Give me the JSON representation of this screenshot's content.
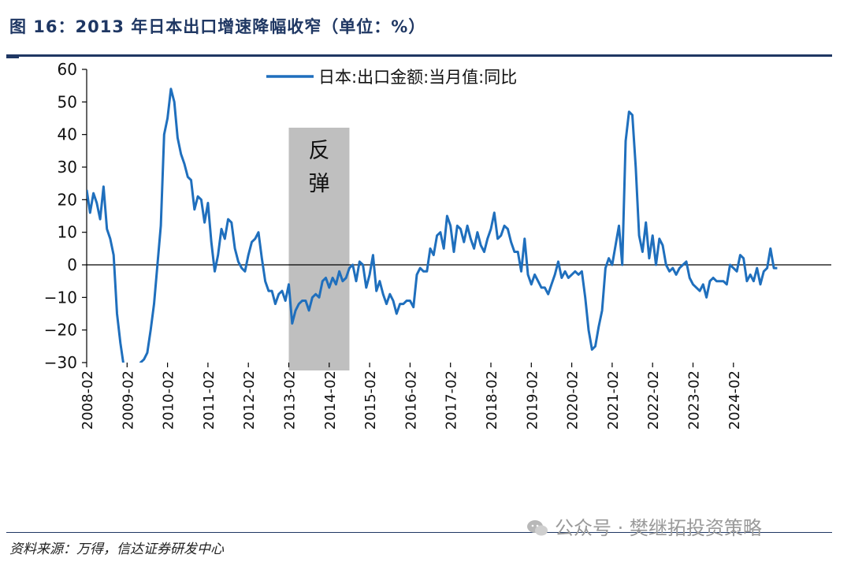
{
  "figure": {
    "title": "图 16：2013 年日本出口增速降幅收窄（单位：%）",
    "source": "资料来源：万得，信达证券研发中心",
    "watermark": "公众号 · 樊继拓投资策略",
    "watermark_icon": "wechat-icon"
  },
  "chart_data": {
    "type": "line",
    "title": "",
    "xlabel": "",
    "ylabel": "",
    "ylim": [
      -30,
      60
    ],
    "yticks": [
      60,
      50,
      40,
      30,
      20,
      10,
      0,
      -10,
      -20,
      -30
    ],
    "xticks": [
      "2008-02",
      "2009-02",
      "2010-02",
      "2011-02",
      "2012-02",
      "2013-02",
      "2014-02",
      "2015-02",
      "2016-02",
      "2017-02",
      "2018-02",
      "2019-02",
      "2020-02",
      "2021-02",
      "2022-02",
      "2023-02",
      "2024-02"
    ],
    "legend": "top-center",
    "grid": false,
    "line_color": "#1f6fbd",
    "annotation": {
      "label": "反弹",
      "x_start": "2013-02",
      "x_end": "2014-08",
      "color": "#bfbfbf"
    },
    "series": [
      {
        "name": "日本:出口金额:当月值:同比",
        "values": [
          [
            "2008-02",
            23
          ],
          [
            "2008-03",
            16
          ],
          [
            "2008-04",
            22
          ],
          [
            "2008-05",
            19
          ],
          [
            "2008-06",
            14
          ],
          [
            "2008-07",
            24
          ],
          [
            "2008-08",
            11
          ],
          [
            "2008-09",
            8
          ],
          [
            "2008-10",
            3
          ],
          [
            "2008-11",
            -15
          ],
          [
            "2008-12",
            -24
          ],
          [
            "2009-01",
            -31
          ],
          [
            "2009-02",
            -32
          ],
          [
            "2009-03",
            -33
          ],
          [
            "2009-04",
            -34
          ],
          [
            "2009-05",
            -33
          ],
          [
            "2009-06",
            -30
          ],
          [
            "2009-07",
            -29
          ],
          [
            "2009-08",
            -27
          ],
          [
            "2009-09",
            -20
          ],
          [
            "2009-10",
            -12
          ],
          [
            "2009-11",
            0
          ],
          [
            "2009-12",
            12
          ],
          [
            "2010-01",
            40
          ],
          [
            "2010-02",
            45
          ],
          [
            "2010-03",
            54
          ],
          [
            "2010-04",
            50
          ],
          [
            "2010-05",
            39
          ],
          [
            "2010-06",
            34
          ],
          [
            "2010-07",
            31
          ],
          [
            "2010-08",
            27
          ],
          [
            "2010-09",
            26
          ],
          [
            "2010-10",
            17
          ],
          [
            "2010-11",
            21
          ],
          [
            "2010-12",
            20
          ],
          [
            "2011-01",
            13
          ],
          [
            "2011-02",
            19
          ],
          [
            "2011-03",
            7
          ],
          [
            "2011-04",
            -2
          ],
          [
            "2011-05",
            3
          ],
          [
            "2011-06",
            11
          ],
          [
            "2011-07",
            8
          ],
          [
            "2011-08",
            14
          ],
          [
            "2011-09",
            13
          ],
          [
            "2011-10",
            5
          ],
          [
            "2011-11",
            1
          ],
          [
            "2011-12",
            -1
          ],
          [
            "2012-01",
            -2
          ],
          [
            "2012-02",
            3
          ],
          [
            "2012-03",
            7
          ],
          [
            "2012-04",
            8
          ],
          [
            "2012-05",
            10
          ],
          [
            "2012-06",
            2
          ],
          [
            "2012-07",
            -5
          ],
          [
            "2012-08",
            -8
          ],
          [
            "2012-09",
            -8
          ],
          [
            "2012-10",
            -12
          ],
          [
            "2012-11",
            -9
          ],
          [
            "2012-12",
            -8
          ],
          [
            "2013-01",
            -11
          ],
          [
            "2013-02",
            -6
          ],
          [
            "2013-03",
            -18
          ],
          [
            "2013-04",
            -14
          ],
          [
            "2013-05",
            -12
          ],
          [
            "2013-06",
            -11
          ],
          [
            "2013-07",
            -11
          ],
          [
            "2013-08",
            -14
          ],
          [
            "2013-09",
            -10
          ],
          [
            "2013-10",
            -9
          ],
          [
            "2013-11",
            -10
          ],
          [
            "2013-12",
            -5
          ],
          [
            "2014-01",
            -4
          ],
          [
            "2014-02",
            -7
          ],
          [
            "2014-03",
            -4
          ],
          [
            "2014-04",
            -6
          ],
          [
            "2014-05",
            -2
          ],
          [
            "2014-06",
            -5
          ],
          [
            "2014-07",
            -4
          ],
          [
            "2014-08",
            -1
          ],
          [
            "2014-09",
            0
          ],
          [
            "2014-10",
            -5
          ],
          [
            "2014-11",
            1
          ],
          [
            "2014-12",
            0
          ],
          [
            "2015-01",
            -7
          ],
          [
            "2015-02",
            -3
          ],
          [
            "2015-03",
            3
          ],
          [
            "2015-04",
            -8
          ],
          [
            "2015-05",
            -5
          ],
          [
            "2015-06",
            -9
          ],
          [
            "2015-07",
            -12
          ],
          [
            "2015-08",
            -9
          ],
          [
            "2015-09",
            -11
          ],
          [
            "2015-10",
            -15
          ],
          [
            "2015-11",
            -12
          ],
          [
            "2015-12",
            -12
          ],
          [
            "2016-01",
            -11
          ],
          [
            "2016-02",
            -11
          ],
          [
            "2016-03",
            -13
          ],
          [
            "2016-04",
            -3
          ],
          [
            "2016-05",
            -1
          ],
          [
            "2016-06",
            -2
          ],
          [
            "2016-07",
            -2
          ],
          [
            "2016-08",
            5
          ],
          [
            "2016-09",
            3
          ],
          [
            "2016-10",
            9
          ],
          [
            "2016-11",
            10
          ],
          [
            "2016-12",
            5
          ],
          [
            "2017-01",
            15
          ],
          [
            "2017-02",
            12
          ],
          [
            "2017-03",
            4
          ],
          [
            "2017-04",
            12
          ],
          [
            "2017-05",
            11
          ],
          [
            "2017-06",
            7
          ],
          [
            "2017-07",
            12
          ],
          [
            "2017-08",
            8
          ],
          [
            "2017-09",
            5
          ],
          [
            "2017-10",
            10
          ],
          [
            "2017-11",
            6
          ],
          [
            "2017-12",
            4
          ],
          [
            "2018-01",
            8
          ],
          [
            "2018-02",
            11
          ],
          [
            "2018-03",
            16
          ],
          [
            "2018-04",
            8
          ],
          [
            "2018-05",
            9
          ],
          [
            "2018-06",
            12
          ],
          [
            "2018-07",
            11
          ],
          [
            "2018-08",
            7
          ],
          [
            "2018-09",
            4
          ],
          [
            "2018-10",
            4
          ],
          [
            "2018-11",
            -2
          ],
          [
            "2018-12",
            8
          ],
          [
            "2019-01",
            -3
          ],
          [
            "2019-02",
            -6
          ],
          [
            "2019-03",
            -3
          ],
          [
            "2019-04",
            -5
          ],
          [
            "2019-05",
            -7
          ],
          [
            "2019-06",
            -7
          ],
          [
            "2019-07",
            -9
          ],
          [
            "2019-08",
            -6
          ],
          [
            "2019-09",
            -3
          ],
          [
            "2019-10",
            1
          ],
          [
            "2019-11",
            -4
          ],
          [
            "2019-12",
            -2
          ],
          [
            "2020-01",
            -4
          ],
          [
            "2020-02",
            -3
          ],
          [
            "2020-03",
            -2
          ],
          [
            "2020-04",
            -3
          ],
          [
            "2020-05",
            -2
          ],
          [
            "2020-06",
            -10
          ],
          [
            "2020-07",
            -20
          ],
          [
            "2020-08",
            -26
          ],
          [
            "2020-09",
            -25
          ],
          [
            "2020-10",
            -19
          ],
          [
            "2020-11",
            -14
          ],
          [
            "2020-12",
            -1
          ],
          [
            "2021-01",
            2
          ],
          [
            "2021-02",
            0
          ],
          [
            "2021-03",
            6
          ],
          [
            "2021-04",
            12
          ],
          [
            "2021-05",
            0
          ],
          [
            "2021-06",
            38
          ],
          [
            "2021-07",
            47
          ],
          [
            "2021-08",
            46
          ],
          [
            "2021-09",
            30
          ],
          [
            "2021-10",
            9
          ],
          [
            "2021-11",
            4
          ],
          [
            "2021-12",
            13
          ],
          [
            "2022-01",
            2
          ],
          [
            "2022-02",
            9
          ],
          [
            "2022-03",
            0
          ],
          [
            "2022-04",
            8
          ],
          [
            "2022-05",
            6
          ],
          [
            "2022-06",
            0
          ],
          [
            "2022-07",
            -2
          ],
          [
            "2022-08",
            -1
          ],
          [
            "2022-09",
            -3
          ],
          [
            "2022-10",
            -1
          ],
          [
            "2022-11",
            0
          ],
          [
            "2022-12",
            1
          ],
          [
            "2023-01",
            -4
          ],
          [
            "2023-02",
            -6
          ],
          [
            "2023-03",
            -7
          ],
          [
            "2023-04",
            -8
          ],
          [
            "2023-05",
            -6
          ],
          [
            "2023-06",
            -10
          ],
          [
            "2023-07",
            -5
          ],
          [
            "2023-08",
            -4
          ],
          [
            "2023-09",
            -5
          ],
          [
            "2023-10",
            -5
          ],
          [
            "2023-11",
            -5
          ],
          [
            "2023-12",
            -6
          ],
          [
            "2024-01",
            0
          ],
          [
            "2024-02",
            -1
          ],
          [
            "2024-03",
            -2
          ],
          [
            "2024-04",
            3
          ],
          [
            "2024-05",
            2
          ],
          [
            "2024-06",
            -5
          ],
          [
            "2024-07",
            -3
          ],
          [
            "2024-08",
            -5
          ],
          [
            "2024-09",
            -1
          ],
          [
            "2024-10",
            -6
          ],
          [
            "2024-11",
            -2
          ],
          [
            "2024-12",
            -1
          ],
          [
            "2025-01",
            5
          ],
          [
            "2025-02",
            -1
          ],
          [
            "2025-03",
            -1
          ]
        ]
      }
    ]
  }
}
